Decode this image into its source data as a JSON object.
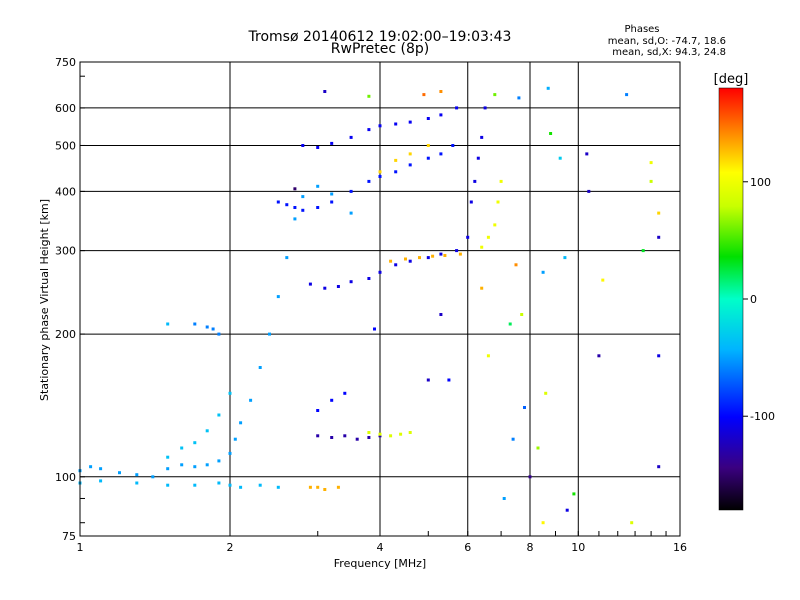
{
  "chart_data": {
    "type": "scatter",
    "title": "Tromsø 20140612 19:02:00–19:03:43",
    "subtitle": "RwPretec (8p)",
    "xlabel": "Frequency [MHz]",
    "ylabel": "Stationary phase Virtual Height [km]",
    "x_scale": "log",
    "y_scale": "log",
    "xlim": [
      1,
      16
    ],
    "ylim": [
      75,
      750
    ],
    "x_ticks": [
      1,
      2,
      4,
      6,
      8,
      10,
      16
    ],
    "y_ticks": [
      75,
      100,
      200,
      300,
      400,
      500,
      600,
      750
    ],
    "x_gridlines": [
      2,
      4,
      6,
      8,
      10
    ],
    "y_gridlines": [
      100,
      200,
      300,
      400,
      500,
      600
    ],
    "grid": true,
    "phase_stats": {
      "title": "Phases",
      "line_o": "mean, sd,O:  -74.7, 18.6",
      "line_x": "mean, sd,X:  94.3, 24.8"
    },
    "colorbar": {
      "label": "[deg]",
      "range": [
        -180,
        180
      ],
      "ticks": [
        100,
        0,
        -100
      ]
    },
    "traces": [
      {
        "x": [
          1.0,
          1.05,
          1.1,
          1.2,
          1.3,
          1.4,
          1.5,
          1.6,
          1.7,
          1.8,
          1.9,
          2.0,
          2.05,
          2.1,
          2.2,
          2.3,
          2.4,
          2.5,
          2.6,
          2.7,
          2.8,
          3.0,
          3.2,
          3.5
        ],
        "y": [
          103,
          105,
          104,
          102,
          101,
          100,
          104,
          106,
          105,
          106,
          108,
          112,
          120,
          130,
          145,
          170,
          200,
          240,
          290,
          350,
          390,
          410,
          395,
          360
        ],
        "phase": -50
      },
      {
        "x": [
          1.0,
          1.1,
          1.3,
          1.5,
          1.7,
          1.9,
          2.0,
          2.1,
          2.3,
          2.5
        ],
        "y": [
          97,
          98,
          97,
          96,
          96,
          97,
          96,
          95,
          96,
          95
        ],
        "phase": -40
      },
      {
        "x": [
          1.5,
          1.6,
          1.7,
          1.8,
          1.9,
          2.0
        ],
        "y": [
          110,
          115,
          118,
          125,
          135,
          150
        ],
        "phase": -35
      },
      {
        "x": [
          2.5,
          2.6,
          2.7,
          2.8,
          3.0,
          3.2,
          3.5,
          3.8,
          4.0,
          4.3,
          4.6,
          5.0,
          5.3,
          5.6
        ],
        "y": [
          380,
          375,
          370,
          365,
          370,
          380,
          400,
          420,
          430,
          440,
          455,
          470,
          480,
          500
        ],
        "phase": -95
      },
      {
        "x": [
          2.8,
          3.0,
          3.2,
          3.5,
          3.8,
          4.0,
          4.3,
          4.6,
          5.0,
          5.3,
          5.7
        ],
        "y": [
          500,
          495,
          505,
          520,
          540,
          550,
          555,
          560,
          570,
          580,
          600
        ],
        "phase": -105
      },
      {
        "x": [
          4.0,
          4.3,
          4.6,
          5.0
        ],
        "y": [
          440,
          465,
          480,
          500
        ],
        "phase": 120
      },
      {
        "x": [
          2.9,
          3.1,
          3.3,
          3.5,
          3.8,
          4.0,
          4.3,
          4.6,
          5.0,
          5.3,
          5.7,
          6.0
        ],
        "y": [
          255,
          250,
          252,
          258,
          262,
          270,
          280,
          285,
          290,
          295,
          300,
          320
        ],
        "phase": -110
      },
      {
        "x": [
          4.2,
          4.5,
          4.8,
          5.1,
          5.4,
          5.8
        ],
        "y": [
          285,
          288,
          290,
          292,
          293,
          295
        ],
        "phase": 130
      },
      {
        "x": [
          3.0,
          3.2,
          3.4,
          3.6,
          3.8,
          4.0
        ],
        "y": [
          122,
          121,
          122,
          120,
          121,
          122
        ],
        "phase": -130
      },
      {
        "x": [
          3.0,
          3.2,
          3.4
        ],
        "y": [
          138,
          145,
          150
        ],
        "phase": -100
      },
      {
        "x": [
          3.8,
          4.0,
          4.2,
          4.4,
          4.6
        ],
        "y": [
          124,
          123,
          122,
          123,
          124
        ],
        "phase": 90
      },
      {
        "x": [
          2.9,
          3.0,
          3.1,
          3.3
        ],
        "y": [
          95,
          95,
          94,
          95
        ],
        "phase": 130
      },
      {
        "x": [
          6.1,
          6.2,
          6.3,
          6.4,
          6.5
        ],
        "y": [
          380,
          420,
          470,
          520,
          600
        ],
        "phase": -110
      },
      {
        "x": [
          6.4,
          6.6,
          6.8,
          6.9,
          7.0
        ],
        "y": [
          305,
          320,
          340,
          380,
          420
        ],
        "phase": 100
      },
      {
        "x": [
          1.7,
          1.8,
          1.85,
          1.9
        ],
        "y": [
          210,
          207,
          205,
          200
        ],
        "phase": -60
      }
    ],
    "scatter_points": [
      {
        "x": 1.5,
        "y": 210,
        "phase": -40
      },
      {
        "x": 4.9,
        "y": 640,
        "phase": 150
      },
      {
        "x": 5.3,
        "y": 650,
        "phase": 140
      },
      {
        "x": 6.8,
        "y": 640,
        "phase": 60
      },
      {
        "x": 7.6,
        "y": 630,
        "phase": -60
      },
      {
        "x": 8.7,
        "y": 660,
        "phase": -45
      },
      {
        "x": 8.8,
        "y": 530,
        "phase": 40
      },
      {
        "x": 9.2,
        "y": 470,
        "phase": -30
      },
      {
        "x": 10.4,
        "y": 480,
        "phase": -120
      },
      {
        "x": 12.5,
        "y": 640,
        "phase": -60
      },
      {
        "x": 14.0,
        "y": 460,
        "phase": 100
      },
      {
        "x": 14.5,
        "y": 360,
        "phase": 120
      },
      {
        "x": 14.5,
        "y": 320,
        "phase": -120
      },
      {
        "x": 7.5,
        "y": 280,
        "phase": 140
      },
      {
        "x": 8.5,
        "y": 270,
        "phase": -50
      },
      {
        "x": 9.4,
        "y": 290,
        "phase": -40
      },
      {
        "x": 11.2,
        "y": 260,
        "phase": 110
      },
      {
        "x": 7.3,
        "y": 210,
        "phase": 20
      },
      {
        "x": 7.7,
        "y": 220,
        "phase": 80
      },
      {
        "x": 11.0,
        "y": 180,
        "phase": -130
      },
      {
        "x": 14.5,
        "y": 180,
        "phase": -110
      },
      {
        "x": 6.6,
        "y": 180,
        "phase": 100
      },
      {
        "x": 5.5,
        "y": 160,
        "phase": -100
      },
      {
        "x": 7.8,
        "y": 140,
        "phase": -70
      },
      {
        "x": 8.6,
        "y": 150,
        "phase": 90
      },
      {
        "x": 7.4,
        "y": 120,
        "phase": -60
      },
      {
        "x": 8.3,
        "y": 115,
        "phase": 70
      },
      {
        "x": 8.0,
        "y": 100,
        "phase": -140
      },
      {
        "x": 7.1,
        "y": 90,
        "phase": -50
      },
      {
        "x": 9.8,
        "y": 92,
        "phase": 40
      },
      {
        "x": 9.5,
        "y": 85,
        "phase": -110
      },
      {
        "x": 14.5,
        "y": 105,
        "phase": -120
      },
      {
        "x": 12.8,
        "y": 80,
        "phase": 90
      },
      {
        "x": 8.5,
        "y": 80,
        "phase": 110
      },
      {
        "x": 3.1,
        "y": 650,
        "phase": -120
      },
      {
        "x": 3.8,
        "y": 635,
        "phase": 60
      },
      {
        "x": 2.7,
        "y": 405,
        "phase": -150
      },
      {
        "x": 5.0,
        "y": 160,
        "phase": -120
      },
      {
        "x": 3.9,
        "y": 205,
        "phase": -100
      },
      {
        "x": 5.3,
        "y": 220,
        "phase": -120
      },
      {
        "x": 6.4,
        "y": 250,
        "phase": 130
      },
      {
        "x": 10.5,
        "y": 400,
        "phase": -120
      },
      {
        "x": 14.0,
        "y": 420,
        "phase": 80
      },
      {
        "x": 13.5,
        "y": 300,
        "phase": 30
      }
    ]
  }
}
